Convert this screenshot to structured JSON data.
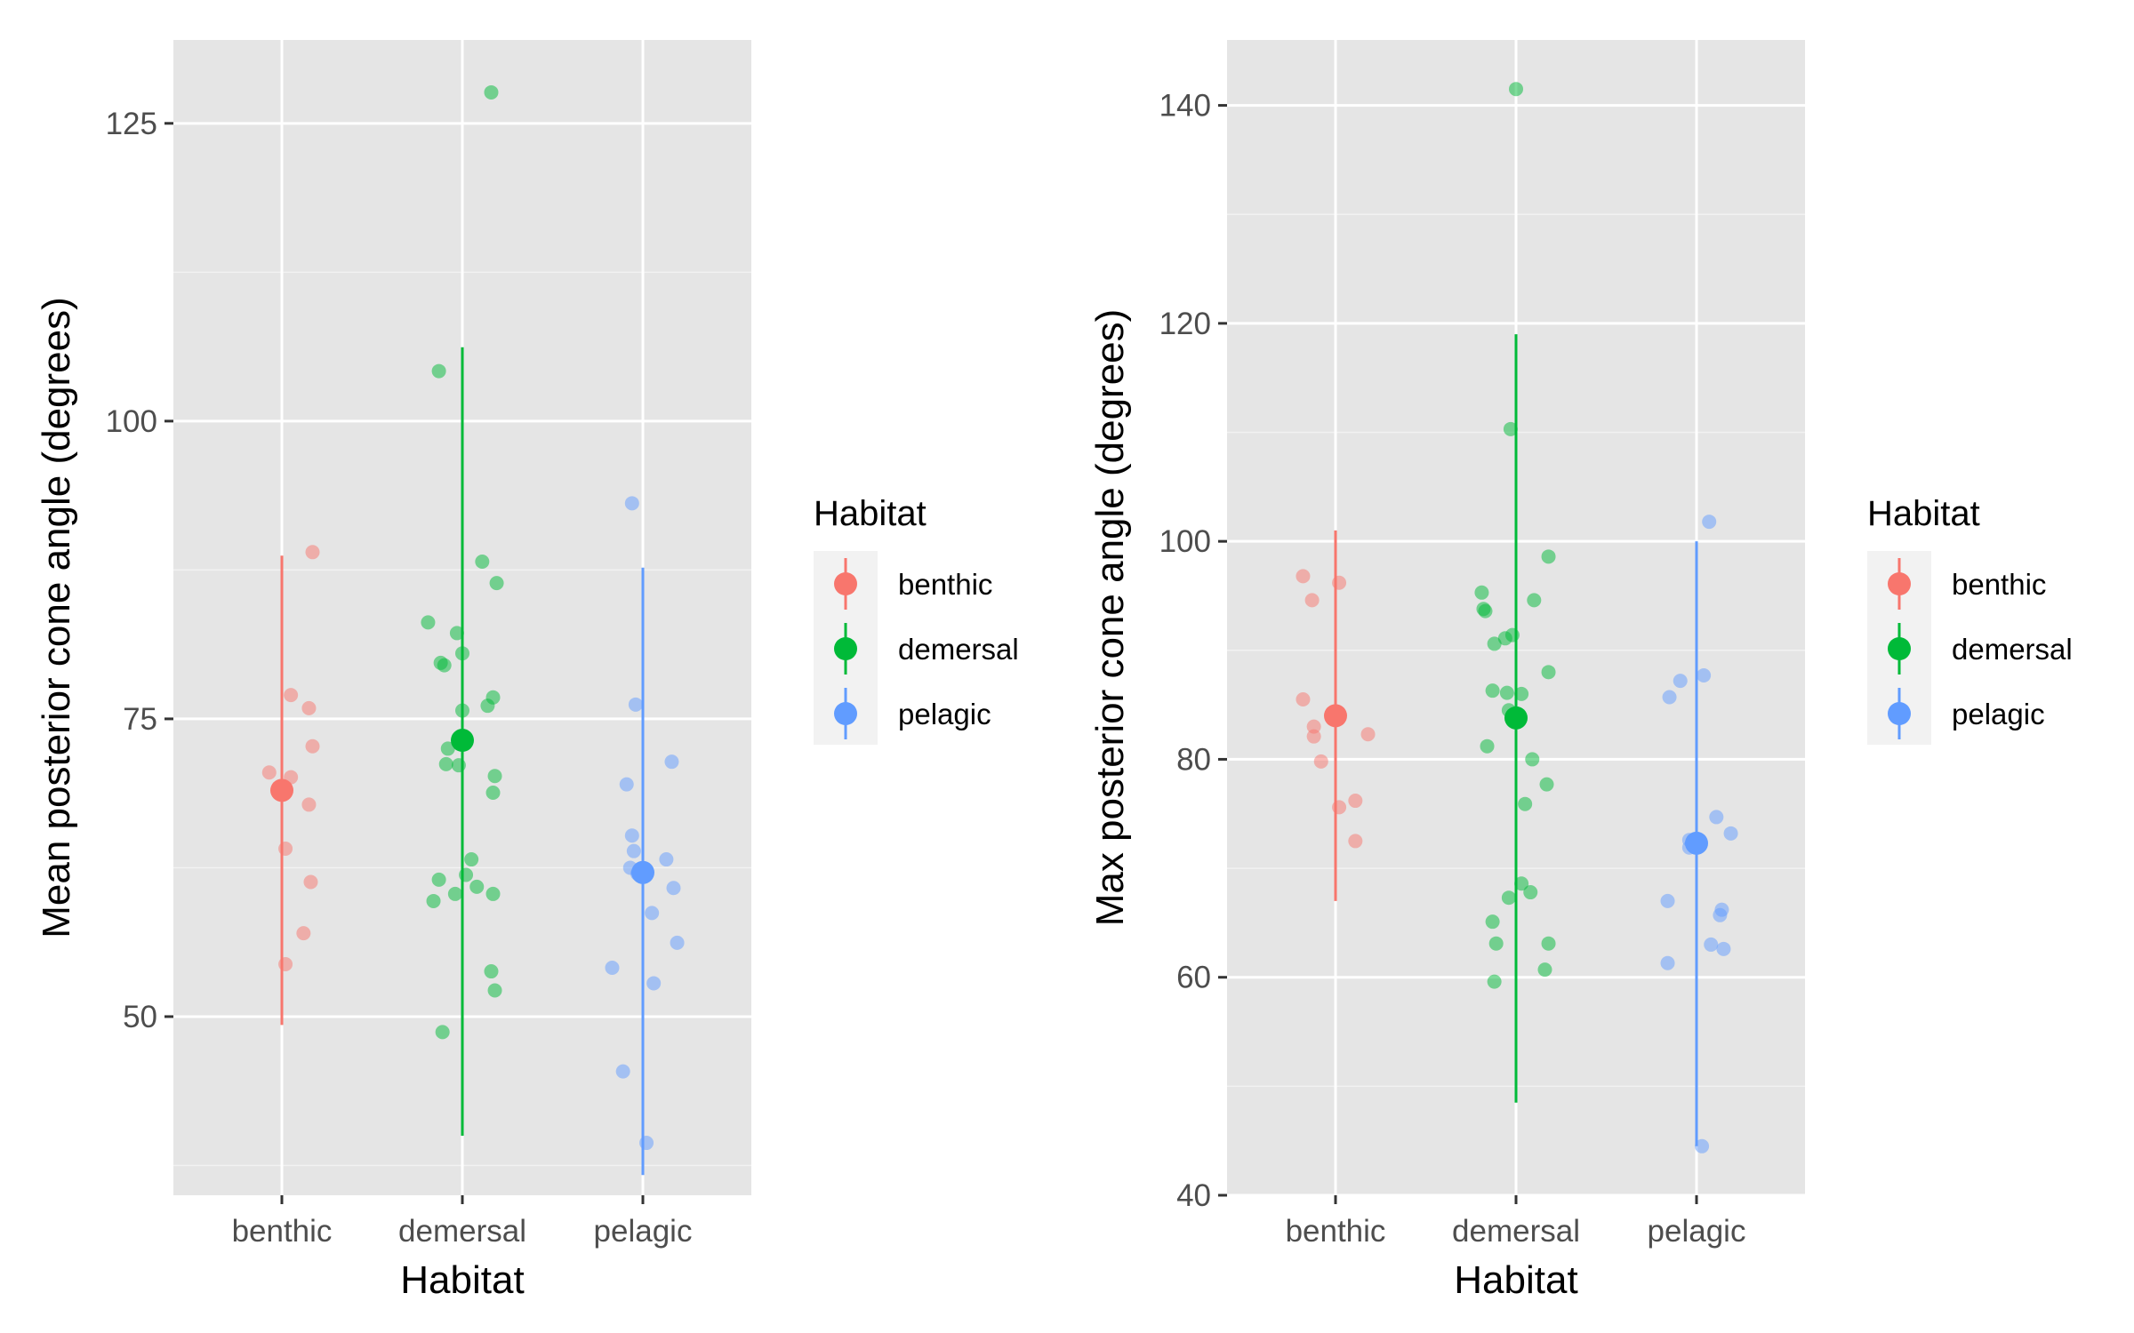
{
  "chart_data": [
    {
      "type": "scatter",
      "categories": [
        "benthic",
        "demersal",
        "pelagic"
      ],
      "xlabel": "Habitat",
      "ylabel": "Mean posterior cone angle (degrees)",
      "ylim": [
        35,
        132
      ],
      "yticks": [
        50,
        75,
        100,
        125
      ],
      "grid": true,
      "legend": {
        "title": "Habitat",
        "position": "right",
        "entries": [
          {
            "label": "benthic",
            "color": "#F8766D"
          },
          {
            "label": "demersal",
            "color": "#00BA38"
          },
          {
            "label": "pelagic",
            "color": "#619CFF"
          }
        ]
      },
      "series": [
        {
          "name": "benthic",
          "color": "#F8766D",
          "mean": 69.0,
          "range": [
            49.3,
            88.7
          ],
          "points": [
            [
              -0.07,
              70.5
            ],
            [
              0.05,
              70.1
            ],
            [
              0.17,
              89.0
            ],
            [
              0.05,
              77.0
            ],
            [
              0.15,
              75.9
            ],
            [
              0.17,
              72.7
            ],
            [
              0.15,
              67.8
            ],
            [
              0.02,
              64.1
            ],
            [
              0.16,
              61.3
            ],
            [
              0.12,
              57.0
            ],
            [
              0.02,
              54.4
            ]
          ]
        },
        {
          "name": "demersal",
          "color": "#00BA38",
          "mean": 73.2,
          "range": [
            40.0,
            106.2
          ],
          "points": [
            [
              0.16,
              127.6
            ],
            [
              -0.13,
              104.2
            ],
            [
              0.11,
              88.2
            ],
            [
              0.19,
              86.4
            ],
            [
              -0.19,
              83.1
            ],
            [
              -0.03,
              82.2
            ],
            [
              -0.12,
              79.7
            ],
            [
              -0.1,
              79.5
            ],
            [
              0.0,
              80.5
            ],
            [
              0.17,
              76.8
            ],
            [
              0.14,
              76.1
            ],
            [
              0.0,
              75.7
            ],
            [
              -0.08,
              72.5
            ],
            [
              -0.09,
              71.2
            ],
            [
              -0.02,
              71.1
            ],
            [
              0.18,
              70.2
            ],
            [
              0.17,
              68.8
            ],
            [
              0.05,
              63.2
            ],
            [
              -0.13,
              61.5
            ],
            [
              0.02,
              61.9
            ],
            [
              0.08,
              60.9
            ],
            [
              -0.04,
              60.3
            ],
            [
              -0.16,
              59.7
            ],
            [
              0.17,
              60.3
            ],
            [
              0.16,
              53.8
            ],
            [
              0.18,
              52.2
            ],
            [
              -0.11,
              48.7
            ]
          ]
        },
        {
          "name": "pelagic",
          "color": "#619CFF",
          "mean": 62.1,
          "range": [
            36.7,
            87.7
          ],
          "points": [
            [
              -0.06,
              93.1
            ],
            [
              -0.04,
              76.2
            ],
            [
              0.16,
              71.4
            ],
            [
              -0.09,
              69.5
            ],
            [
              -0.06,
              65.2
            ],
            [
              -0.05,
              63.9
            ],
            [
              -0.07,
              62.5
            ],
            [
              0.13,
              63.2
            ],
            [
              -0.03,
              62.0
            ],
            [
              0.17,
              60.8
            ],
            [
              0.05,
              58.7
            ],
            [
              0.19,
              56.2
            ],
            [
              -0.17,
              54.1
            ],
            [
              0.06,
              52.8
            ],
            [
              -0.11,
              45.4
            ],
            [
              0.02,
              39.4
            ]
          ]
        }
      ]
    },
    {
      "type": "scatter",
      "categories": [
        "benthic",
        "demersal",
        "pelagic"
      ],
      "xlabel": "Habitat",
      "ylabel": "Max posterior cone angle (degrees)",
      "ylim": [
        40,
        146
      ],
      "yticks": [
        40,
        60,
        80,
        100,
        120,
        140
      ],
      "grid": true,
      "legend": {
        "title": "Habitat",
        "position": "right",
        "entries": [
          {
            "label": "benthic",
            "color": "#F8766D"
          },
          {
            "label": "demersal",
            "color": "#00BA38"
          },
          {
            "label": "pelagic",
            "color": "#619CFF"
          }
        ]
      },
      "series": [
        {
          "name": "benthic",
          "color": "#F8766D",
          "mean": 84.0,
          "range": [
            67.0,
            101.0
          ],
          "points": [
            [
              -0.18,
              96.8
            ],
            [
              -0.13,
              94.6
            ],
            [
              0.02,
              96.2
            ],
            [
              -0.18,
              85.5
            ],
            [
              -0.12,
              83.0
            ],
            [
              -0.12,
              82.1
            ],
            [
              0.18,
              82.3
            ],
            [
              -0.08,
              79.8
            ],
            [
              0.11,
              76.2
            ],
            [
              0.02,
              75.6
            ],
            [
              0.11,
              72.5
            ]
          ]
        },
        {
          "name": "demersal",
          "color": "#00BA38",
          "mean": 83.8,
          "range": [
            48.5,
            119.0
          ],
          "points": [
            [
              0.0,
              141.5
            ],
            [
              -0.03,
              110.3
            ],
            [
              0.18,
              98.6
            ],
            [
              -0.19,
              95.3
            ],
            [
              -0.18,
              93.8
            ],
            [
              -0.17,
              93.6
            ],
            [
              0.1,
              94.6
            ],
            [
              -0.02,
              91.4
            ],
            [
              -0.06,
              91.1
            ],
            [
              -0.12,
              90.6
            ],
            [
              0.18,
              88.0
            ],
            [
              -0.13,
              86.3
            ],
            [
              -0.05,
              86.1
            ],
            [
              0.03,
              86.0
            ],
            [
              -0.04,
              84.5
            ],
            [
              -0.02,
              83.8
            ],
            [
              -0.16,
              81.2
            ],
            [
              0.09,
              80.0
            ],
            [
              0.17,
              77.7
            ],
            [
              0.05,
              75.9
            ],
            [
              0.03,
              68.6
            ],
            [
              0.08,
              67.8
            ],
            [
              -0.04,
              67.3
            ],
            [
              -0.13,
              65.1
            ],
            [
              -0.11,
              63.1
            ],
            [
              0.18,
              63.1
            ],
            [
              -0.12,
              59.6
            ],
            [
              0.16,
              60.7
            ]
          ]
        },
        {
          "name": "pelagic",
          "color": "#619CFF",
          "mean": 72.3,
          "range": [
            44.5,
            100.0
          ],
          "points": [
            [
              0.07,
              101.8
            ],
            [
              -0.09,
              87.2
            ],
            [
              0.04,
              87.7
            ],
            [
              -0.15,
              85.7
            ],
            [
              0.11,
              74.7
            ],
            [
              0.19,
              73.2
            ],
            [
              -0.04,
              72.6
            ],
            [
              -0.02,
              72.4
            ],
            [
              -0.04,
              71.9
            ],
            [
              -0.16,
              67.0
            ],
            [
              0.14,
              66.2
            ],
            [
              0.13,
              65.7
            ],
            [
              0.08,
              63.0
            ],
            [
              0.15,
              62.6
            ],
            [
              -0.16,
              61.3
            ],
            [
              0.03,
              44.5
            ]
          ]
        }
      ]
    }
  ]
}
